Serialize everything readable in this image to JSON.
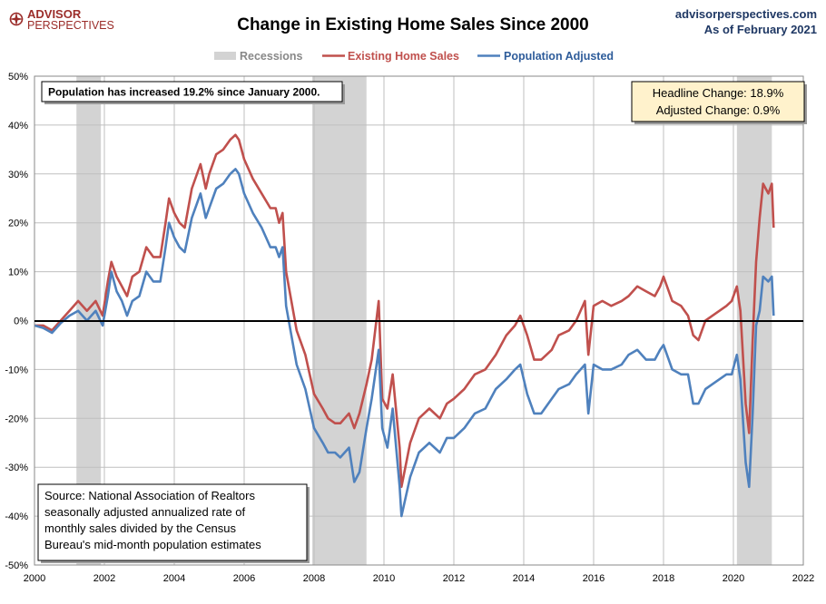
{
  "header": {
    "logo_line1": "ADVISOR",
    "logo_line2": "PERSPECTIVES",
    "site": "advisorperspectives.com",
    "as_of": "As of February 2021"
  },
  "colors": {
    "existing": "#c0504d",
    "adjusted": "#4f81bd",
    "recession": "#d3d3d3",
    "logo": "#9b2d2a",
    "note_bg": "#fff2cc"
  },
  "notes": {
    "population": "Population has increased 19.2% since January 2000.",
    "headline": "Headline Change: 18.9%",
    "adjusted": "Adjusted Change: 0.9%",
    "source": [
      "Source: National Association of Realtors",
      "seasonally adjusted annualized rate of",
      "monthly  sales divided by the Census",
      "Bureau's mid-month  population estimates"
    ]
  },
  "chart_data": {
    "type": "line",
    "title": "Change in Existing Home Sales Since 2000",
    "xlim": [
      2000,
      2022
    ],
    "ylim": [
      -50,
      50
    ],
    "x_ticks": [
      "2000",
      "2002",
      "2004",
      "2006",
      "2008",
      "2010",
      "2012",
      "2014",
      "2016",
      "2018",
      "2020",
      "2022"
    ],
    "y_ticks": [
      "50%",
      "40%",
      "30%",
      "20%",
      "10%",
      "0%",
      "-10%",
      "-20%",
      "-30%",
      "-40%",
      "-50%"
    ],
    "grid": true,
    "legend": "top-center",
    "legend_entries": [
      "Recessions",
      "Existing Home Sales",
      "Population Adjusted"
    ],
    "recessions": [
      [
        2001.2,
        2001.9
      ],
      [
        2007.95,
        2009.5
      ],
      [
        2020.1,
        2021.1
      ]
    ],
    "series": [
      {
        "name": "Existing Home Sales",
        "color": "#c0504d",
        "points": [
          [
            2000.0,
            -1
          ],
          [
            2000.25,
            -1
          ],
          [
            2000.5,
            -2
          ],
          [
            2000.75,
            0
          ],
          [
            2001.0,
            2
          ],
          [
            2001.25,
            4
          ],
          [
            2001.5,
            2
          ],
          [
            2001.75,
            4
          ],
          [
            2001.95,
            1
          ],
          [
            2002.1,
            8
          ],
          [
            2002.2,
            12
          ],
          [
            2002.35,
            9
          ],
          [
            2002.5,
            7
          ],
          [
            2002.65,
            5
          ],
          [
            2002.8,
            9
          ],
          [
            2003.0,
            10
          ],
          [
            2003.2,
            15
          ],
          [
            2003.4,
            13
          ],
          [
            2003.6,
            13
          ],
          [
            2003.75,
            20
          ],
          [
            2003.85,
            25
          ],
          [
            2004.0,
            22
          ],
          [
            2004.15,
            20
          ],
          [
            2004.3,
            19
          ],
          [
            2004.5,
            27
          ],
          [
            2004.75,
            32
          ],
          [
            2004.9,
            27
          ],
          [
            2005.0,
            30
          ],
          [
            2005.2,
            34
          ],
          [
            2005.4,
            35
          ],
          [
            2005.6,
            37
          ],
          [
            2005.75,
            38
          ],
          [
            2005.85,
            37
          ],
          [
            2006.0,
            33
          ],
          [
            2006.25,
            29
          ],
          [
            2006.5,
            26
          ],
          [
            2006.75,
            23
          ],
          [
            2006.9,
            23
          ],
          [
            2007.0,
            20
          ],
          [
            2007.1,
            22
          ],
          [
            2007.2,
            10
          ],
          [
            2007.35,
            4
          ],
          [
            2007.5,
            -2
          ],
          [
            2007.75,
            -7
          ],
          [
            2008.0,
            -15
          ],
          [
            2008.25,
            -18
          ],
          [
            2008.4,
            -20
          ],
          [
            2008.6,
            -21
          ],
          [
            2008.75,
            -21
          ],
          [
            2009.0,
            -19
          ],
          [
            2009.15,
            -22
          ],
          [
            2009.3,
            -19
          ],
          [
            2009.5,
            -13
          ],
          [
            2009.65,
            -8
          ],
          [
            2009.85,
            4
          ],
          [
            2009.95,
            -16
          ],
          [
            2010.1,
            -18
          ],
          [
            2010.25,
            -11
          ],
          [
            2010.45,
            -26
          ],
          [
            2010.5,
            -34
          ],
          [
            2010.75,
            -25
          ],
          [
            2011.0,
            -20
          ],
          [
            2011.3,
            -18
          ],
          [
            2011.6,
            -20
          ],
          [
            2011.8,
            -17
          ],
          [
            2012.0,
            -16
          ],
          [
            2012.3,
            -14
          ],
          [
            2012.6,
            -11
          ],
          [
            2012.9,
            -10
          ],
          [
            2013.2,
            -7
          ],
          [
            2013.5,
            -3
          ],
          [
            2013.75,
            -1
          ],
          [
            2013.9,
            1
          ],
          [
            2014.1,
            -3
          ],
          [
            2014.3,
            -8
          ],
          [
            2014.5,
            -8
          ],
          [
            2014.8,
            -6
          ],
          [
            2015.0,
            -3
          ],
          [
            2015.3,
            -2
          ],
          [
            2015.5,
            0
          ],
          [
            2015.75,
            4
          ],
          [
            2015.85,
            -7
          ],
          [
            2016.0,
            3
          ],
          [
            2016.25,
            4
          ],
          [
            2016.5,
            3
          ],
          [
            2016.8,
            4
          ],
          [
            2017.0,
            5
          ],
          [
            2017.25,
            7
          ],
          [
            2017.5,
            6
          ],
          [
            2017.75,
            5
          ],
          [
            2017.9,
            7
          ],
          [
            2018.0,
            9
          ],
          [
            2018.25,
            4
          ],
          [
            2018.5,
            3
          ],
          [
            2018.7,
            1
          ],
          [
            2018.85,
            -3
          ],
          [
            2019.0,
            -4
          ],
          [
            2019.2,
            0
          ],
          [
            2019.4,
            1
          ],
          [
            2019.6,
            2
          ],
          [
            2019.8,
            3
          ],
          [
            2019.95,
            4
          ],
          [
            2020.1,
            7
          ],
          [
            2020.2,
            2
          ],
          [
            2020.35,
            -17
          ],
          [
            2020.45,
            -23
          ],
          [
            2020.55,
            -4
          ],
          [
            2020.65,
            12
          ],
          [
            2020.75,
            21
          ],
          [
            2020.85,
            28
          ],
          [
            2021.0,
            26
          ],
          [
            2021.1,
            28
          ],
          [
            2021.15,
            19
          ]
        ]
      },
      {
        "name": "Population Adjusted",
        "color": "#4f81bd",
        "points": [
          [
            2000.0,
            -1
          ],
          [
            2000.25,
            -1.5
          ],
          [
            2000.5,
            -2.5
          ],
          [
            2000.75,
            -0.5
          ],
          [
            2001.0,
            1
          ],
          [
            2001.25,
            2
          ],
          [
            2001.5,
            0
          ],
          [
            2001.75,
            2
          ],
          [
            2001.95,
            -1
          ],
          [
            2002.1,
            5
          ],
          [
            2002.2,
            10
          ],
          [
            2002.35,
            6
          ],
          [
            2002.5,
            4
          ],
          [
            2002.65,
            1
          ],
          [
            2002.8,
            4
          ],
          [
            2003.0,
            5
          ],
          [
            2003.2,
            10
          ],
          [
            2003.4,
            8
          ],
          [
            2003.6,
            8
          ],
          [
            2003.75,
            15
          ],
          [
            2003.85,
            20
          ],
          [
            2004.0,
            17
          ],
          [
            2004.15,
            15
          ],
          [
            2004.3,
            14
          ],
          [
            2004.5,
            21
          ],
          [
            2004.75,
            26
          ],
          [
            2004.9,
            21
          ],
          [
            2005.0,
            23
          ],
          [
            2005.2,
            27
          ],
          [
            2005.4,
            28
          ],
          [
            2005.6,
            30
          ],
          [
            2005.75,
            31
          ],
          [
            2005.85,
            30
          ],
          [
            2006.0,
            26
          ],
          [
            2006.25,
            22
          ],
          [
            2006.5,
            19
          ],
          [
            2006.75,
            15
          ],
          [
            2006.9,
            15
          ],
          [
            2007.0,
            13
          ],
          [
            2007.1,
            15
          ],
          [
            2007.2,
            3
          ],
          [
            2007.35,
            -3
          ],
          [
            2007.5,
            -9
          ],
          [
            2007.75,
            -14
          ],
          [
            2008.0,
            -22
          ],
          [
            2008.25,
            -25
          ],
          [
            2008.4,
            -27
          ],
          [
            2008.6,
            -27
          ],
          [
            2008.75,
            -28
          ],
          [
            2009.0,
            -26
          ],
          [
            2009.15,
            -33
          ],
          [
            2009.3,
            -31
          ],
          [
            2009.5,
            -22
          ],
          [
            2009.65,
            -16
          ],
          [
            2009.85,
            -6
          ],
          [
            2009.95,
            -22
          ],
          [
            2010.1,
            -26
          ],
          [
            2010.25,
            -18
          ],
          [
            2010.45,
            -34
          ],
          [
            2010.5,
            -40
          ],
          [
            2010.75,
            -32
          ],
          [
            2011.0,
            -27
          ],
          [
            2011.3,
            -25
          ],
          [
            2011.6,
            -27
          ],
          [
            2011.8,
            -24
          ],
          [
            2012.0,
            -24
          ],
          [
            2012.3,
            -22
          ],
          [
            2012.6,
            -19
          ],
          [
            2012.9,
            -18
          ],
          [
            2013.2,
            -14
          ],
          [
            2013.5,
            -12
          ],
          [
            2013.75,
            -10
          ],
          [
            2013.9,
            -9
          ],
          [
            2014.1,
            -15
          ],
          [
            2014.3,
            -19
          ],
          [
            2014.5,
            -19
          ],
          [
            2014.8,
            -16
          ],
          [
            2015.0,
            -14
          ],
          [
            2015.3,
            -13
          ],
          [
            2015.5,
            -11
          ],
          [
            2015.75,
            -9
          ],
          [
            2015.85,
            -19
          ],
          [
            2016.0,
            -9
          ],
          [
            2016.25,
            -10
          ],
          [
            2016.5,
            -10
          ],
          [
            2016.8,
            -9
          ],
          [
            2017.0,
            -7
          ],
          [
            2017.25,
            -6
          ],
          [
            2017.5,
            -8
          ],
          [
            2017.75,
            -8
          ],
          [
            2017.9,
            -6
          ],
          [
            2018.0,
            -5
          ],
          [
            2018.25,
            -10
          ],
          [
            2018.5,
            -11
          ],
          [
            2018.7,
            -11
          ],
          [
            2018.85,
            -17
          ],
          [
            2019.0,
            -17
          ],
          [
            2019.2,
            -14
          ],
          [
            2019.4,
            -13
          ],
          [
            2019.6,
            -12
          ],
          [
            2019.8,
            -11
          ],
          [
            2019.95,
            -11
          ],
          [
            2020.1,
            -7
          ],
          [
            2020.2,
            -12
          ],
          [
            2020.35,
            -29
          ],
          [
            2020.45,
            -34
          ],
          [
            2020.55,
            -19
          ],
          [
            2020.65,
            -1
          ],
          [
            2020.75,
            2
          ],
          [
            2020.85,
            9
          ],
          [
            2021.0,
            8
          ],
          [
            2021.1,
            9
          ],
          [
            2021.15,
            1
          ]
        ]
      }
    ]
  }
}
